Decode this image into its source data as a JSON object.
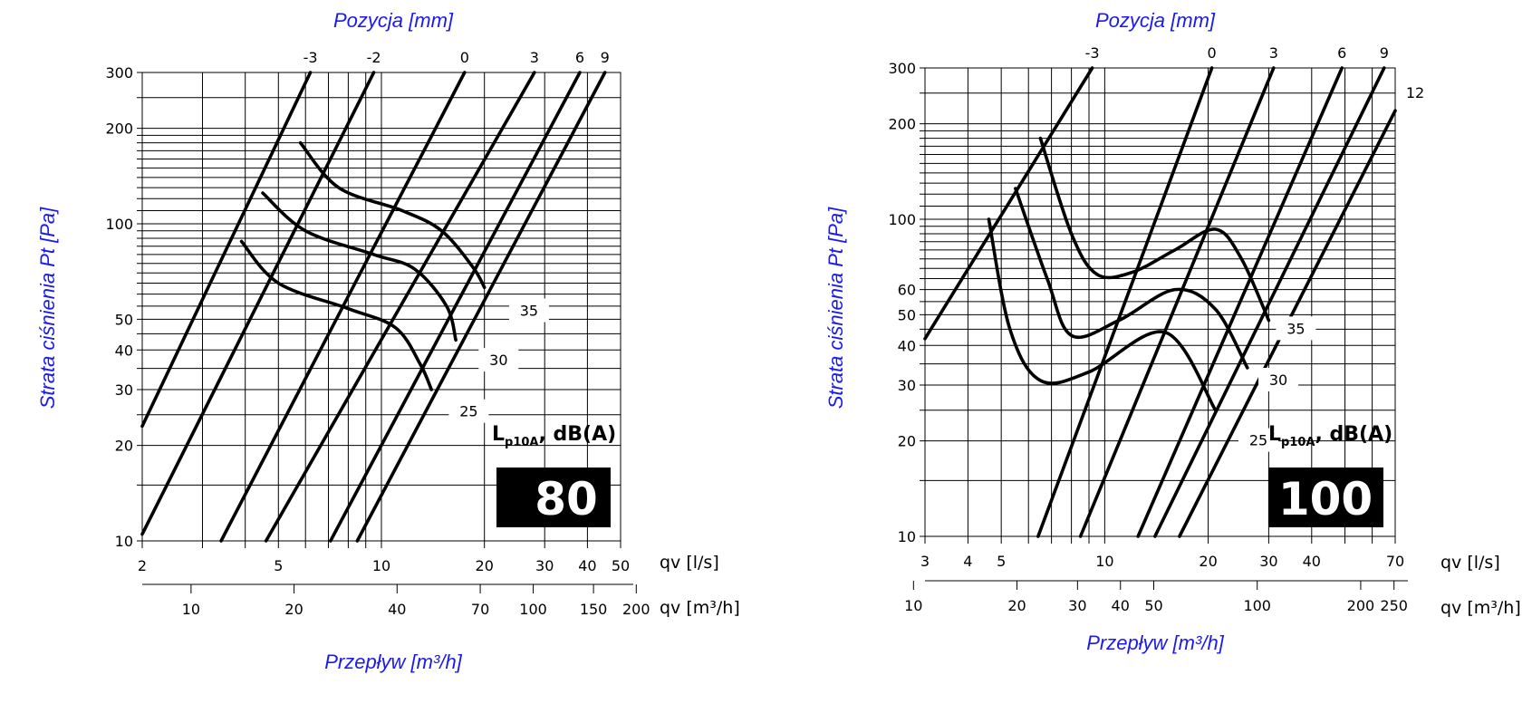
{
  "chart_data": [
    {
      "type": "line",
      "size_label": "80",
      "legend_main": "L",
      "legend_sub": "p10A",
      "legend_unit": ", dB(A)",
      "top_title": "Pozycja [mm]",
      "ylabel": "Strata ciśnienia Pt [Pa]",
      "xlabel": "Przepływ [m³/h]",
      "x_unit_ls": "qv [l/s]",
      "x_unit_m3h": "qv [m³/h]",
      "xscale": "log",
      "yscale": "log",
      "xlim": [
        2,
        50
      ],
      "ylim": [
        10,
        300
      ],
      "y_ticks": [
        "10",
        "20",
        "30",
        "40",
        "50",
        "100",
        "200",
        "300"
      ],
      "x_ticks": [
        "2",
        "5",
        "10",
        "20",
        "30",
        "40",
        "50"
      ],
      "m3h_ticks": [
        "10",
        "20",
        "40",
        "70",
        "100",
        "150",
        "200"
      ],
      "position_ticks": [
        "-3",
        "-2",
        "0",
        "3",
        "6",
        "9"
      ],
      "series": [
        {
          "name": "-3",
          "points": [
            [
              2,
              23
            ],
            [
              6.2,
              300
            ]
          ]
        },
        {
          "name": "-2",
          "points": [
            [
              2,
              10.5
            ],
            [
              9.5,
              300
            ]
          ]
        },
        {
          "name": "0",
          "points": [
            [
              3.4,
              10
            ],
            [
              17.5,
              300
            ]
          ]
        },
        {
          "name": "3",
          "points": [
            [
              4.6,
              10
            ],
            [
              28,
              300
            ]
          ]
        },
        {
          "name": "6",
          "points": [
            [
              7.1,
              10
            ],
            [
              38,
              300
            ]
          ]
        },
        {
          "name": "9",
          "points": [
            [
              8.5,
              10
            ],
            [
              45,
              300
            ]
          ]
        }
      ],
      "noise_curves": [
        {
          "name": "35",
          "points": [
            [
              5.8,
              180
            ],
            [
              7.5,
              130
            ],
            [
              11.5,
              110
            ],
            [
              15,
              95
            ],
            [
              18.5,
              73
            ],
            [
              20,
              63
            ]
          ]
        },
        {
          "name": "30",
          "points": [
            [
              4.5,
              125
            ],
            [
              6,
              95
            ],
            [
              9.5,
              80
            ],
            [
              12.5,
              72
            ],
            [
              15.5,
              55
            ],
            [
              16.5,
              43
            ]
          ]
        },
        {
          "name": "25",
          "points": [
            [
              3.9,
              88
            ],
            [
              5,
              65
            ],
            [
              8,
              54
            ],
            [
              11,
              47
            ],
            [
              13,
              36
            ],
            [
              14,
              30
            ]
          ]
        }
      ],
      "noise_labels": [
        {
          "text": "35",
          "x": 27,
          "y": 53
        },
        {
          "text": "30",
          "x": 22,
          "y": 37
        },
        {
          "text": "25",
          "x": 18,
          "y": 25.5
        }
      ]
    },
    {
      "type": "line",
      "size_label": "100",
      "legend_main": "L",
      "legend_sub": "p10A",
      "legend_unit": ", dB(A)",
      "top_title": "Pozycja [mm]",
      "ylabel": "Strata ciśnienia Pt [Pa]",
      "xlabel": "Przepływ [m³/h]",
      "x_unit_ls": "qv [l/s]",
      "x_unit_m3h": "qv [m³/h]",
      "xscale": "log",
      "yscale": "log",
      "xlim": [
        3,
        70
      ],
      "ylim": [
        10,
        300
      ],
      "y_ticks": [
        "10",
        "20",
        "30",
        "40",
        "50",
        "60",
        "100",
        "200",
        "300"
      ],
      "x_ticks": [
        "3",
        "4",
        "5",
        "10",
        "20",
        "30",
        "40",
        "70"
      ],
      "m3h_ticks": [
        "10",
        "20",
        "30",
        "40",
        "50",
        "100",
        "200",
        "250"
      ],
      "position_ticks": [
        "-3",
        "0",
        "3",
        "6",
        "9",
        "12"
      ],
      "series": [
        {
          "name": "-3",
          "points": [
            [
              3,
              42
            ],
            [
              9.2,
              300
            ]
          ]
        },
        {
          "name": "0",
          "points": [
            [
              6.4,
              10
            ],
            [
              20.5,
              300
            ]
          ]
        },
        {
          "name": "3",
          "points": [
            [
              8.5,
              10
            ],
            [
              31,
              300
            ]
          ]
        },
        {
          "name": "6",
          "points": [
            [
              12.5,
              10
            ],
            [
              49,
              300
            ]
          ]
        },
        {
          "name": "9",
          "points": [
            [
              14,
              10
            ],
            [
              65,
              300
            ]
          ]
        },
        {
          "name": "12",
          "points": [
            [
              16.5,
              10
            ],
            [
              70,
              220
            ]
          ]
        }
      ],
      "noise_curves": [
        {
          "name": "35",
          "points": [
            [
              6.5,
              180
            ],
            [
              8,
              90
            ],
            [
              9.5,
              67
            ],
            [
              12,
              68
            ],
            [
              16,
              80
            ],
            [
              21,
              93
            ],
            [
              25,
              75
            ],
            [
              30,
              48
            ]
          ]
        },
        {
          "name": "30",
          "points": [
            [
              5.5,
              125
            ],
            [
              6.8,
              65
            ],
            [
              8,
              43
            ],
            [
              11,
              48
            ],
            [
              16,
              60
            ],
            [
              21,
              52
            ],
            [
              26,
              34
            ]
          ]
        },
        {
          "name": "25",
          "points": [
            [
              4.6,
              100
            ],
            [
              5.3,
              45
            ],
            [
              6.5,
              31
            ],
            [
              9,
              33
            ],
            [
              15,
              44
            ],
            [
              21,
              25
            ]
          ]
        }
      ],
      "noise_labels": [
        {
          "text": "35",
          "x": 36,
          "y": 45
        },
        {
          "text": "30",
          "x": 32,
          "y": 31
        },
        {
          "text": "25",
          "x": 28,
          "y": 20
        }
      ]
    }
  ]
}
